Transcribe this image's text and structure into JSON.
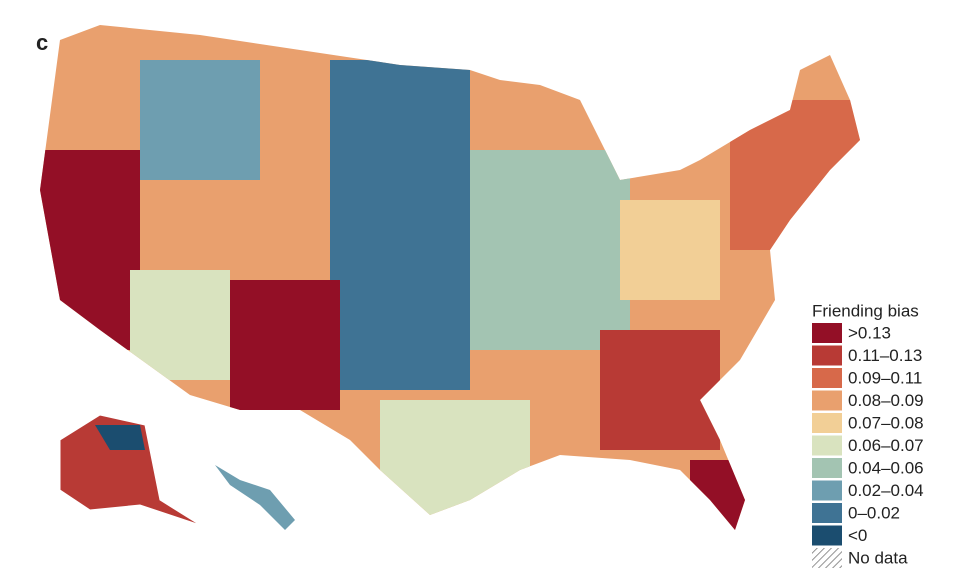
{
  "panel_label": "c",
  "legend": {
    "title": "Friending bias",
    "items": [
      {
        "label": ">0.13",
        "color": "#930f26"
      },
      {
        "label": "0.11–0.13",
        "color": "#b83a35"
      },
      {
        "label": "0.09–0.11",
        "color": "#d7694a"
      },
      {
        "label": "0.08–0.09",
        "color": "#e9a06e"
      },
      {
        "label": "0.07–0.08",
        "color": "#f2cf96"
      },
      {
        "label": "0.06–0.07",
        "color": "#d9e3bf"
      },
      {
        "label": "0.04–0.06",
        "color": "#a3c4b2"
      },
      {
        "label": "0.02–0.04",
        "color": "#6e9eb0"
      },
      {
        "label": "0–0.02",
        "color": "#3f7394"
      },
      {
        "label": "<0",
        "color": "#1b4d6f"
      },
      {
        "label": "No data",
        "hatch": true
      }
    ]
  }
}
